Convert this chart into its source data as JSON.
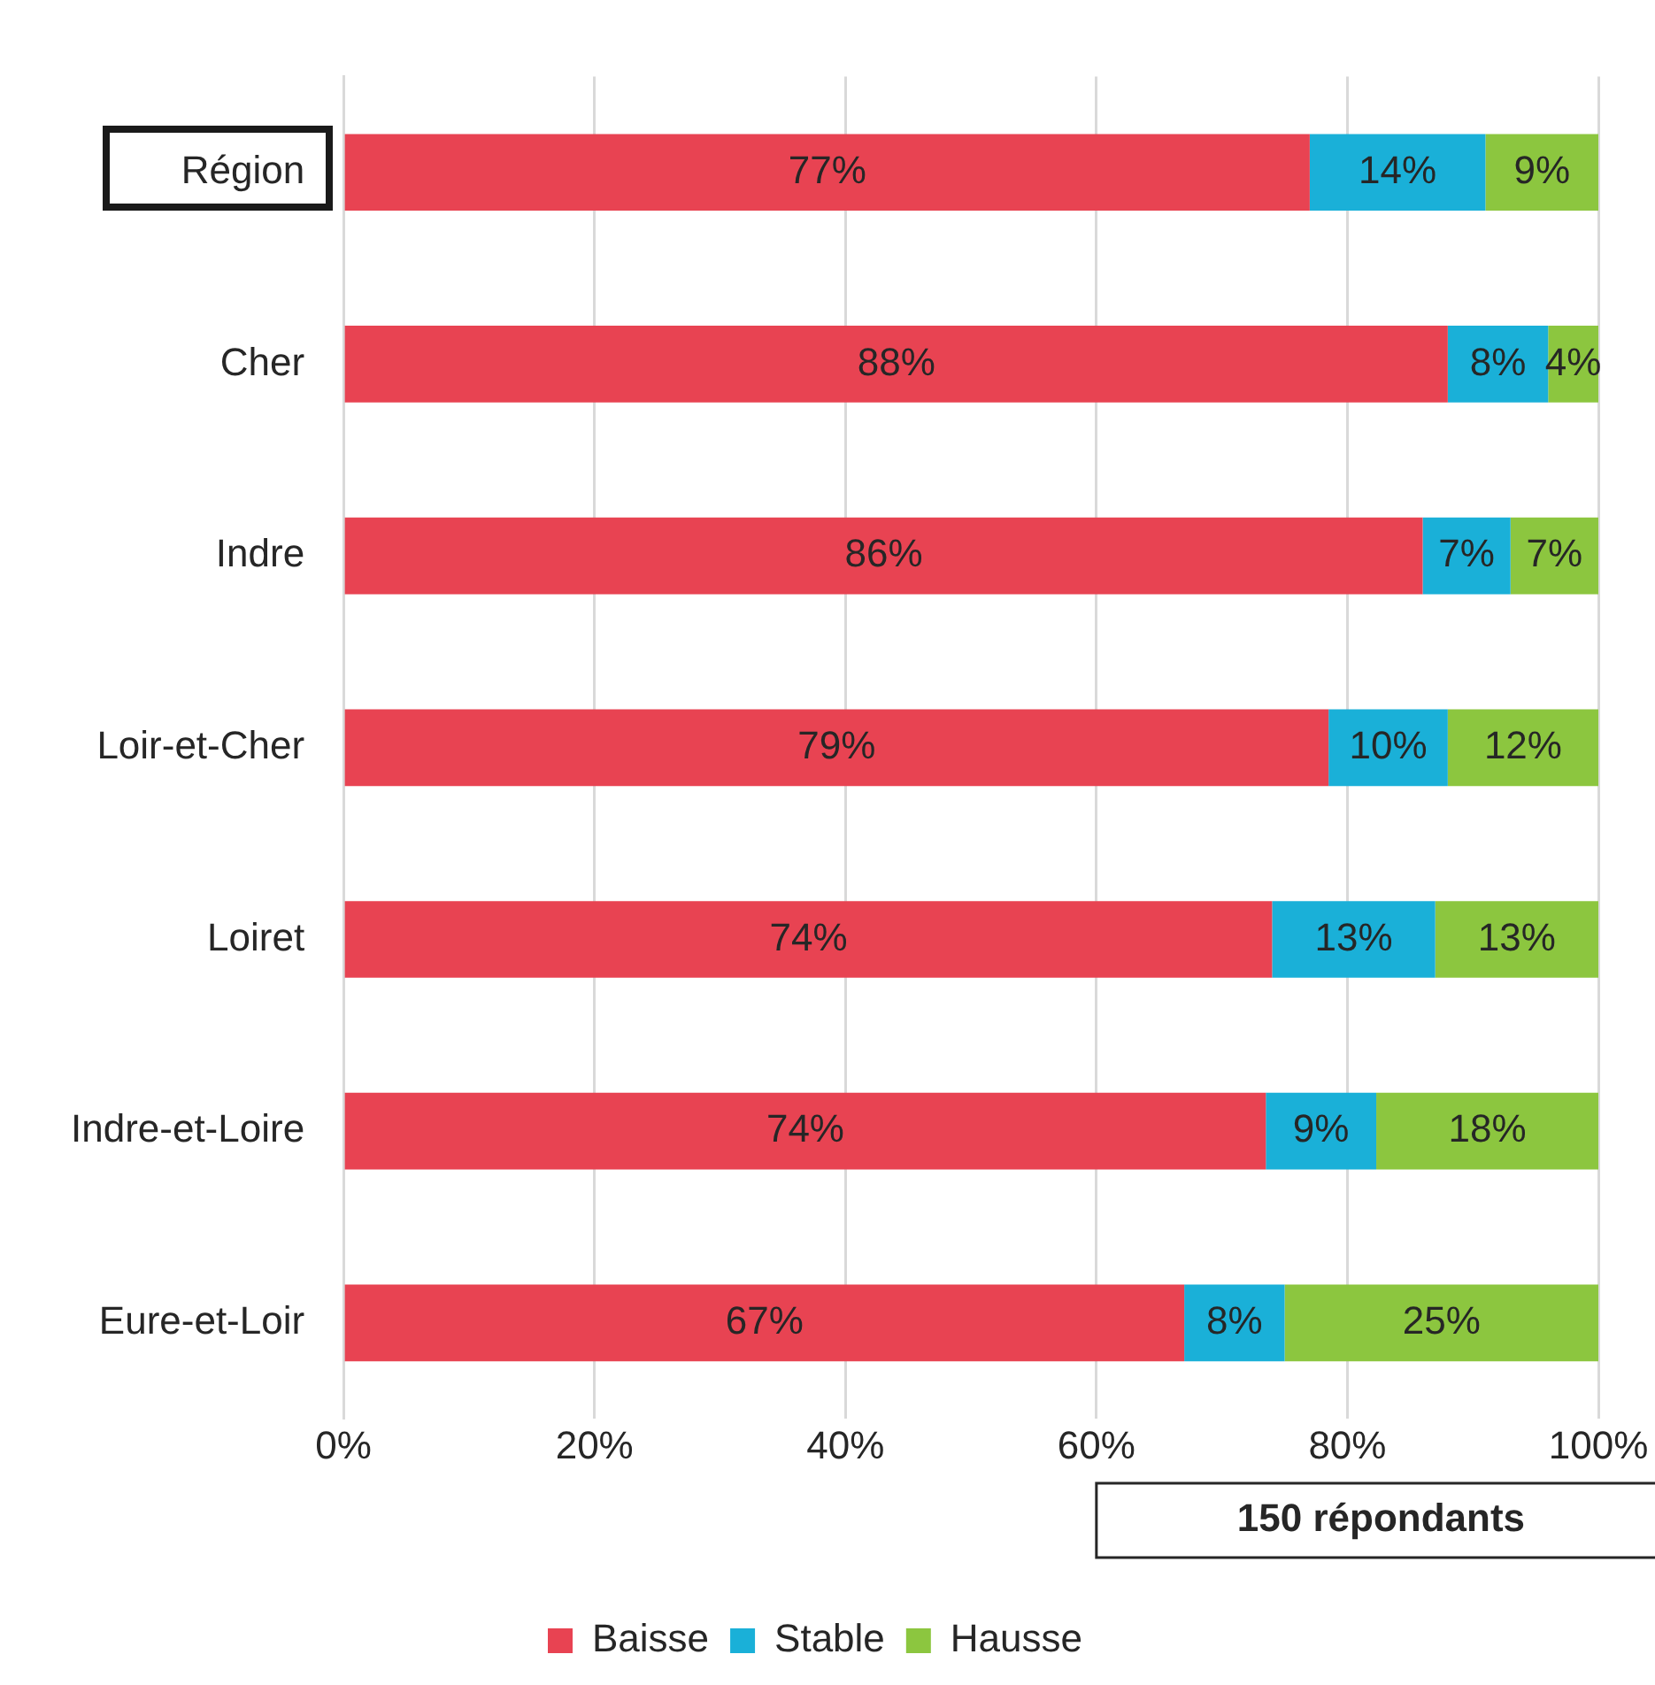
{
  "chart_data": {
    "type": "bar",
    "orientation": "horizontal",
    "stacked": true,
    "categories": [
      "Région",
      "Cher",
      "Indre",
      "Loir-et-Cher",
      "Loiret",
      "Indre-et-Loire",
      "Eure-et-Loir"
    ],
    "series": [
      {
        "name": "Baisse",
        "color": "#e84352",
        "values": [
          77,
          88,
          86,
          78.5,
          74,
          73.5,
          67
        ],
        "value_labels": [
          "77%",
          "88%",
          "86%",
          "79%",
          "74%",
          "74%",
          "67%"
        ]
      },
      {
        "name": "Stable",
        "color": "#1ab0d8",
        "values": [
          14,
          8,
          7,
          9.5,
          13,
          8.8,
          8
        ],
        "value_labels": [
          "14%",
          "8%",
          "7%",
          "10%",
          "13%",
          "9%",
          "8%"
        ]
      },
      {
        "name": "Hausse",
        "color": "#8cc63f",
        "values": [
          9,
          4,
          7,
          12,
          13,
          17.7,
          25
        ],
        "value_labels": [
          "9%",
          "4%",
          "7%",
          "12%",
          "13%",
          "18%",
          "25%"
        ]
      }
    ],
    "xlim": [
      0,
      100
    ],
    "xticks": [
      {
        "value": 0,
        "label": "0%"
      },
      {
        "value": 20,
        "label": "20%"
      },
      {
        "value": 40,
        "label": "40%"
      },
      {
        "value": 60,
        "label": "60%"
      },
      {
        "value": 80,
        "label": "80%"
      },
      {
        "value": 100,
        "label": "100%"
      }
    ],
    "grid": "x",
    "legend": "bottom",
    "annotations": [
      "150 répondants"
    ]
  }
}
